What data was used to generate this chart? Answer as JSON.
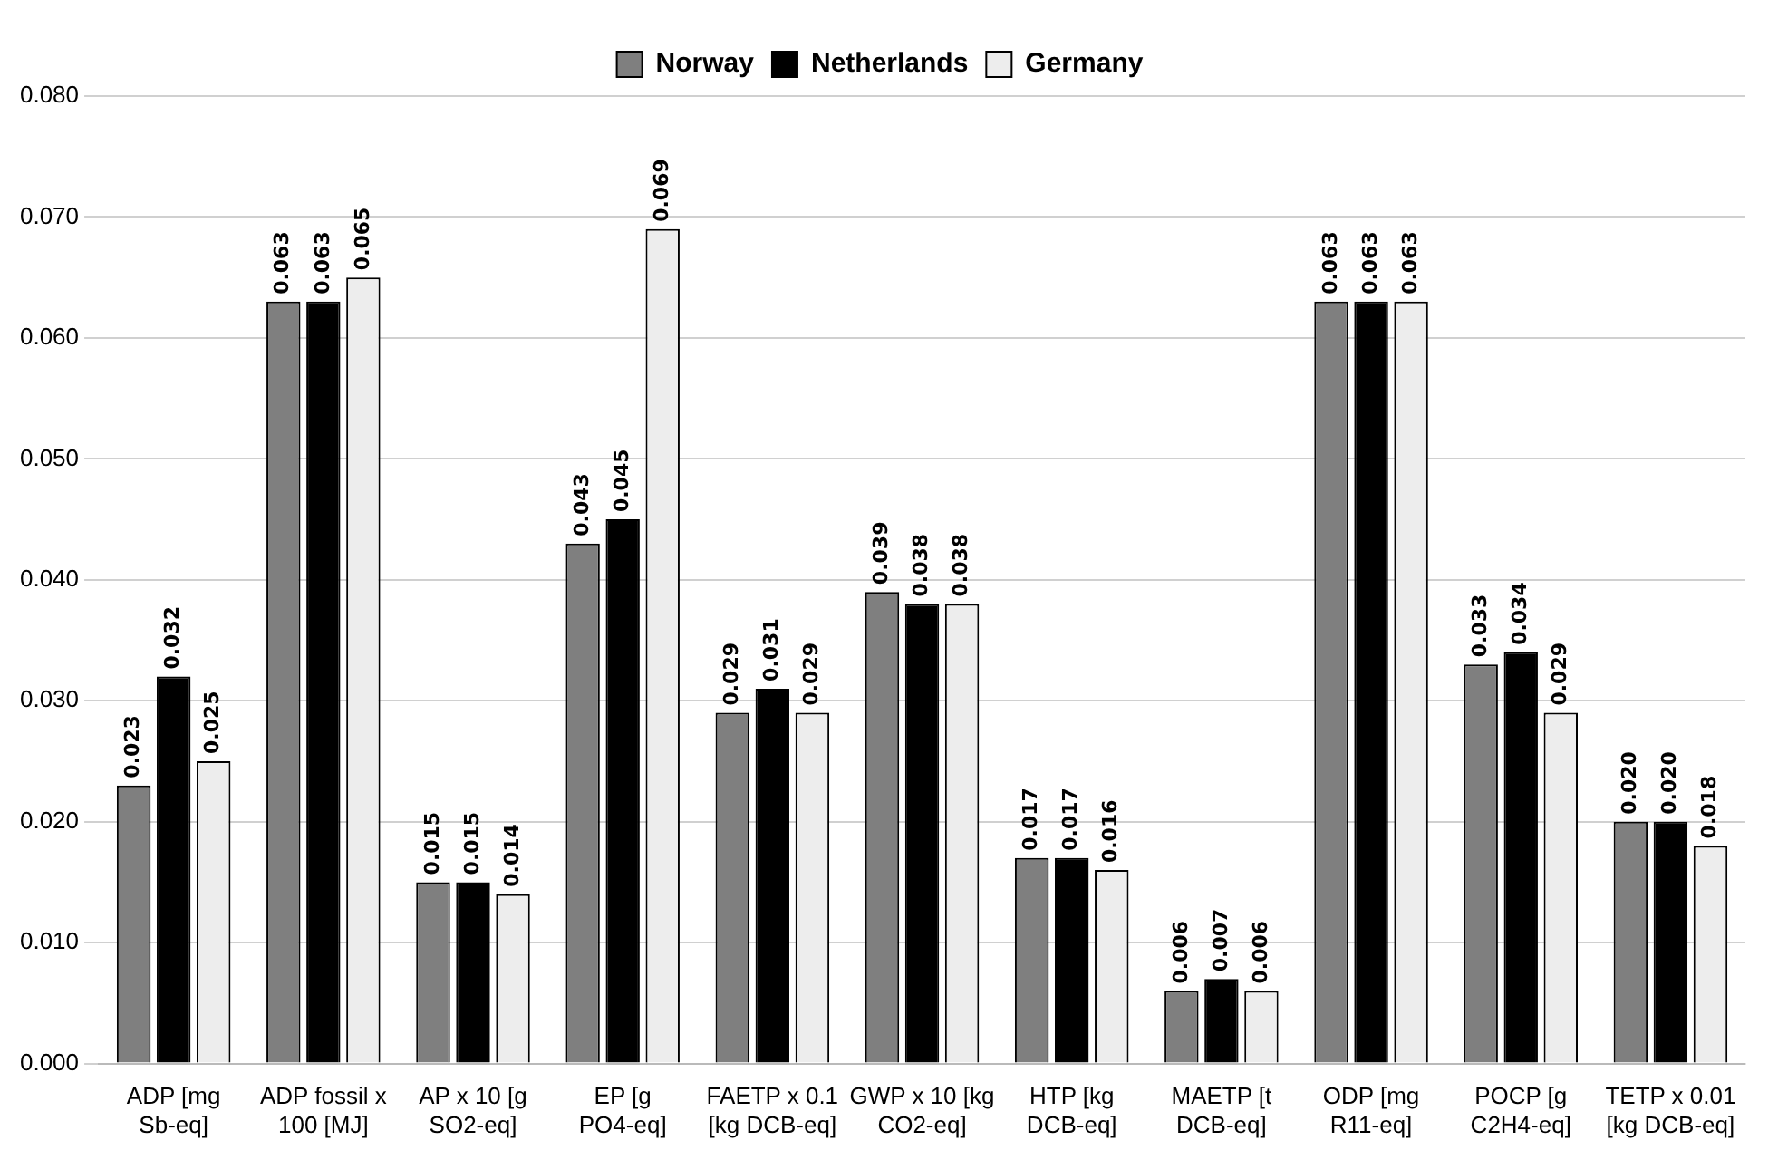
{
  "chart_data": {
    "type": "bar",
    "categories": [
      "ADP [mg Sb-eq]",
      "ADP fossil x 100 [MJ]",
      "AP x 10 [g SO2-eq]",
      "EP [g PO4-eq]",
      "FAETP x 0.1 [kg DCB-eq]",
      "GWP x 10 [kg CO2-eq]",
      "HTP [kg DCB-eq]",
      "MAETP [t DCB-eq]",
      "ODP [mg R11-eq]",
      "POCP [g C2H4-eq]",
      "TETP x 0.01 [kg DCB-eq]"
    ],
    "series": [
      {
        "name": "Norway",
        "color": "#7f7f7f",
        "values": [
          0.023,
          0.063,
          0.015,
          0.043,
          0.029,
          0.039,
          0.017,
          0.006,
          0.063,
          0.033,
          0.02
        ],
        "value_labels": [
          "0.023",
          "0.063",
          "0.015",
          "0.043",
          "0.029",
          "0.039",
          "0.017",
          "0.006",
          "0.063",
          "0.033",
          "0.020"
        ]
      },
      {
        "name": "Netherlands",
        "color": "#000000",
        "values": [
          0.032,
          0.063,
          0.015,
          0.045,
          0.031,
          0.038,
          0.017,
          0.007,
          0.063,
          0.034,
          0.02
        ],
        "value_labels": [
          "0.032",
          "0.063",
          "0.015",
          "0.045",
          "0.031",
          "0.038",
          "0.017",
          "0.007",
          "0.063",
          "0.034",
          "0.020"
        ]
      },
      {
        "name": "Germany",
        "color": "#ededed",
        "values": [
          0.025,
          0.065,
          0.014,
          0.069,
          0.029,
          0.038,
          0.016,
          0.006,
          0.063,
          0.029,
          0.018
        ],
        "value_labels": [
          "0.025",
          "0.065",
          "0.014",
          "0.069",
          "0.029",
          "0.038",
          "0.016",
          "0.006",
          "0.063",
          "0.029",
          "0.018"
        ]
      }
    ],
    "ylim": [
      0,
      0.08
    ],
    "yticks": [
      {
        "value": 0,
        "label": "0.000"
      },
      {
        "value": 0.01,
        "label": "0.010"
      },
      {
        "value": 0.02,
        "label": "0.020"
      },
      {
        "value": 0.03,
        "label": "0.030"
      },
      {
        "value": 0.04,
        "label": "0.040"
      },
      {
        "value": 0.05,
        "label": "0.050"
      },
      {
        "value": 0.06,
        "label": "0.060"
      },
      {
        "value": 0.07,
        "label": "0.070"
      },
      {
        "value": 0.08,
        "label": "0.080"
      }
    ],
    "grid": "y",
    "legend": "top"
  }
}
